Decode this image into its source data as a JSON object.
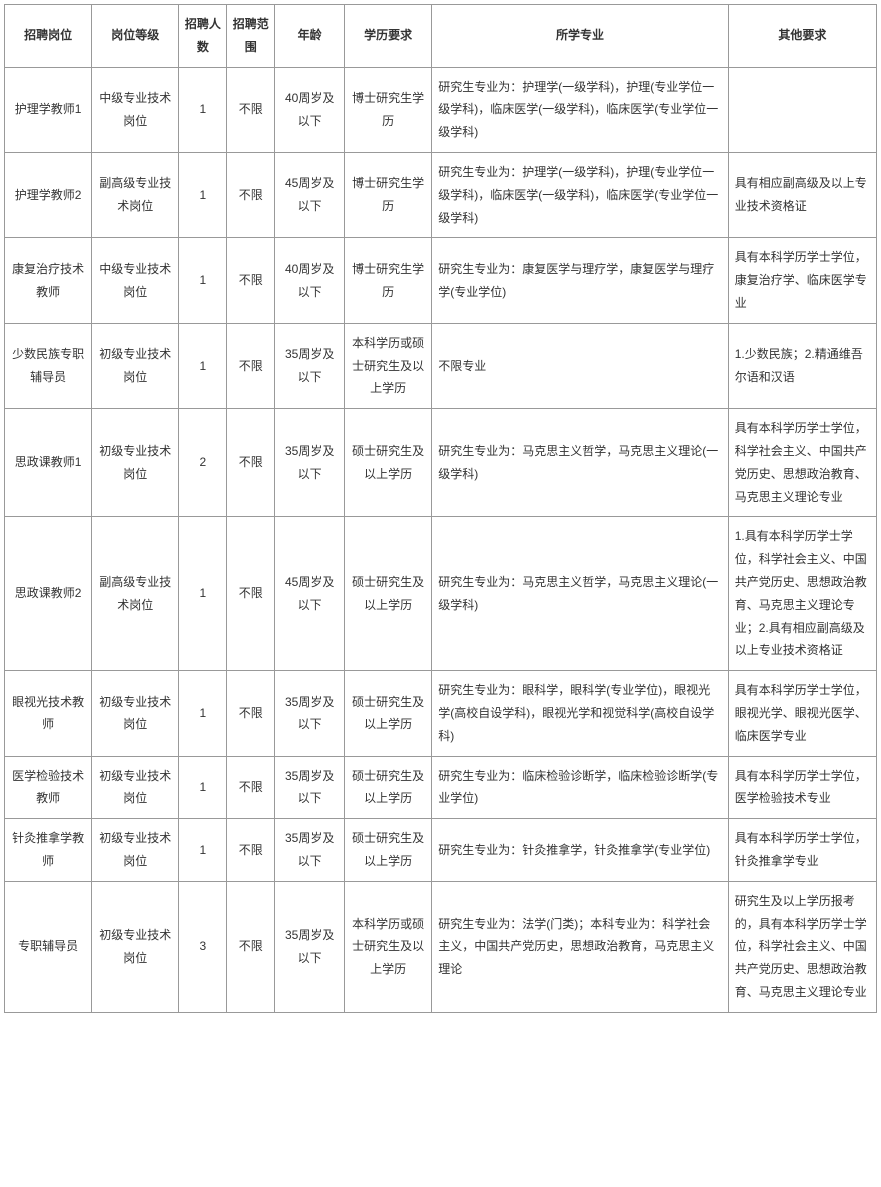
{
  "table": {
    "headers": {
      "position": "招聘岗位",
      "level": "岗位等级",
      "count": "招聘人数",
      "scope": "招聘范围",
      "age": "年龄",
      "education": "学历要求",
      "major": "所学专业",
      "other": "其他要求"
    },
    "rows": [
      {
        "position": "护理学教师1",
        "level": "中级专业技术岗位",
        "count": "1",
        "scope": "不限",
        "age": "40周岁及以下",
        "education": "博士研究生学历",
        "major": "研究生专业为：护理学(一级学科)，护理(专业学位一级学科)，临床医学(一级学科)，临床医学(专业学位一级学科)",
        "other": ""
      },
      {
        "position": "护理学教师2",
        "level": "副高级专业技术岗位",
        "count": "1",
        "scope": "不限",
        "age": "45周岁及以下",
        "education": "博士研究生学历",
        "major": "研究生专业为：护理学(一级学科)，护理(专业学位一级学科)，临床医学(一级学科)，临床医学(专业学位一级学科)",
        "other": "具有相应副高级及以上专业技术资格证"
      },
      {
        "position": "康复治疗技术教师",
        "level": "中级专业技术岗位",
        "count": "1",
        "scope": "不限",
        "age": "40周岁及以下",
        "education": "博士研究生学历",
        "major": "研究生专业为：康复医学与理疗学，康复医学与理疗学(专业学位)",
        "other": "具有本科学历学士学位，康复治疗学、临床医学专业"
      },
      {
        "position": "少数民族专职辅导员",
        "level": "初级专业技术岗位",
        "count": "1",
        "scope": "不限",
        "age": "35周岁及以下",
        "education": "本科学历或硕士研究生及以上学历",
        "major": "不限专业",
        "other": "1.少数民族；2.精通维吾尔语和汉语"
      },
      {
        "position": "思政课教师1",
        "level": "初级专业技术岗位",
        "count": "2",
        "scope": "不限",
        "age": "35周岁及以下",
        "education": "硕士研究生及以上学历",
        "major": "研究生专业为：马克思主义哲学，马克思主义理论(一级学科)",
        "other": "具有本科学历学士学位，科学社会主义、中国共产党历史、思想政治教育、马克思主义理论专业"
      },
      {
        "position": "思政课教师2",
        "level": "副高级专业技术岗位",
        "count": "1",
        "scope": "不限",
        "age": "45周岁及以下",
        "education": "硕士研究生及以上学历",
        "major": "研究生专业为：马克思主义哲学，马克思主义理论(一级学科)",
        "other": "1.具有本科学历学士学位，科学社会主义、中国共产党历史、思想政治教育、马克思主义理论专业；2.具有相应副高级及以上专业技术资格证"
      },
      {
        "position": "眼视光技术教师",
        "level": "初级专业技术岗位",
        "count": "1",
        "scope": "不限",
        "age": "35周岁及以下",
        "education": "硕士研究生及以上学历",
        "major": "研究生专业为：眼科学，眼科学(专业学位)，眼视光学(高校自设学科)，眼视光学和视觉科学(高校自设学科)",
        "other": "具有本科学历学士学位，眼视光学、眼视光医学、临床医学专业"
      },
      {
        "position": "医学检验技术教师",
        "level": "初级专业技术岗位",
        "count": "1",
        "scope": "不限",
        "age": "35周岁及以下",
        "education": "硕士研究生及以上学历",
        "major": "研究生专业为：临床检验诊断学，临床检验诊断学(专业学位)",
        "other": "具有本科学历学士学位，医学检验技术专业"
      },
      {
        "position": "针灸推拿学教师",
        "level": "初级专业技术岗位",
        "count": "1",
        "scope": "不限",
        "age": "35周岁及以下",
        "education": "硕士研究生及以上学历",
        "major": "研究生专业为：针灸推拿学，针灸推拿学(专业学位)",
        "other": "具有本科学历学士学位，针灸推拿学专业"
      },
      {
        "position": "专职辅导员",
        "level": "初级专业技术岗位",
        "count": "3",
        "scope": "不限",
        "age": "35周岁及以下",
        "education": "本科学历或硕士研究生及以上学历",
        "major": "研究生专业为：法学(门类)；本科专业为：科学社会主义，中国共产党历史，思想政治教育，马克思主义理论",
        "other": "研究生及以上学历报考的，具有本科学历学士学位，科学社会主义、中国共产党历史、思想政治教育、马克思主义理论专业"
      }
    ],
    "styling": {
      "border_color": "#999999",
      "text_color": "#333333",
      "background_color": "#ffffff",
      "font_size": 12,
      "header_font_weight": "bold",
      "line_height": 1.9
    }
  }
}
